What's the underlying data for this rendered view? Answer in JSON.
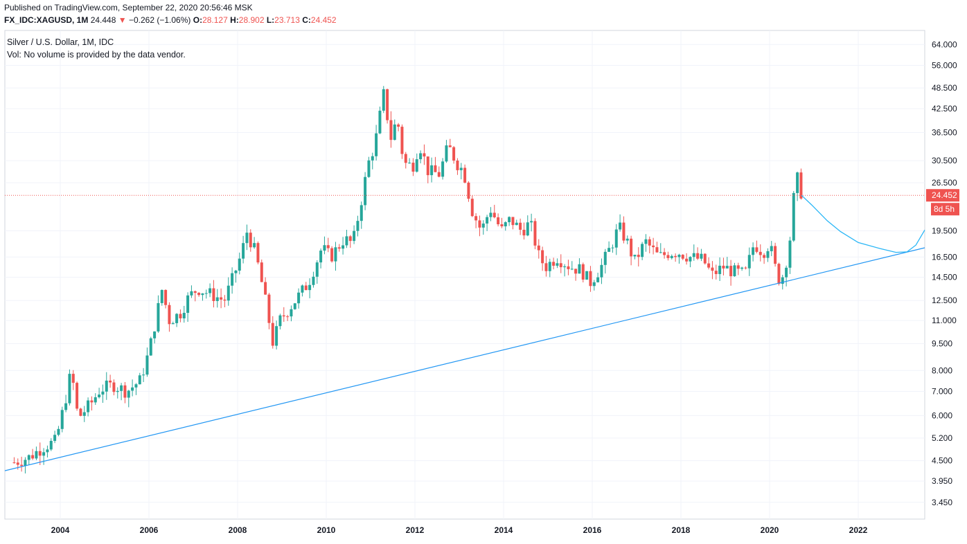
{
  "header": {
    "published": "Published on TradingView.com, September 22, 2020 20:56:46 MSK",
    "symbol": "FX_IDC:XAGUSD, 1M",
    "last": "24.448",
    "change": "−0.262 (−1.06%)",
    "o_label": "O:",
    "o_value": "28.127",
    "h_label": "H:",
    "h_value": "28.902",
    "l_label": "L:",
    "l_value": "23.713",
    "c_label": "C:",
    "c_value": "24.452"
  },
  "legend": {
    "title": "Silver / U.S. Dollar, 1M, IDC",
    "volume_note": "Vol: No volume is provided by the data vendor."
  },
  "price_tag": {
    "value": "24.452",
    "countdown": "8d 5h",
    "color": "#ef5350"
  },
  "colors": {
    "up": "#26a69a",
    "down": "#ef5350",
    "trendline": "#2196f3",
    "projection": "#29b6f6",
    "grid": "#f0f3fa"
  },
  "chart_data": {
    "type": "candlestick",
    "scale": "log",
    "ylim": [
      3.1,
      70
    ],
    "xlim": [
      2002.75,
      2023.5
    ],
    "y_ticks": [
      3.45,
      3.95,
      4.5,
      5.2,
      6.0,
      7.0,
      8.0,
      9.5,
      11.0,
      12.5,
      14.5,
      16.5,
      19.5,
      26.5,
      30.5,
      36.5,
      42.5,
      48.5,
      56.0,
      64.0
    ],
    "y_tick_labels": [
      "3.450",
      "3.950",
      "4.500",
      "5.200",
      "6.000",
      "7.000",
      "8.000",
      "9.500",
      "11.000",
      "12.500",
      "14.500",
      "16.500",
      "19.500",
      "26.500",
      "30.500",
      "36.500",
      "42.500",
      "48.500",
      "56.000",
      "64.000"
    ],
    "x_ticks": [
      2004,
      2006,
      2008,
      2010,
      2012,
      2014,
      2016,
      2018,
      2020,
      2022
    ],
    "x_tick_labels": [
      "2004",
      "2006",
      "2008",
      "2010",
      "2012",
      "2014",
      "2016",
      "2018",
      "2020",
      "2022"
    ],
    "last_price": 24.452,
    "close_path": [
      [
        2002.96,
        4.45
      ],
      [
        2003.3,
        4.6
      ],
      [
        2003.6,
        4.9
      ],
      [
        2003.9,
        5.1
      ],
      [
        2004.1,
        6.5
      ],
      [
        2004.25,
        8.0
      ],
      [
        2004.4,
        5.9
      ],
      [
        2004.7,
        6.5
      ],
      [
        2004.9,
        7.1
      ],
      [
        2005.2,
        7.3
      ],
      [
        2005.5,
        7.0
      ],
      [
        2005.8,
        7.5
      ],
      [
        2006.0,
        9.0
      ],
      [
        2006.15,
        11.0
      ],
      [
        2006.3,
        13.5
      ],
      [
        2006.45,
        11.0
      ],
      [
        2006.7,
        11.5
      ],
      [
        2006.9,
        12.8
      ],
      [
        2007.1,
        13.5
      ],
      [
        2007.4,
        13.0
      ],
      [
        2007.7,
        12.5
      ],
      [
        2007.9,
        14.5
      ],
      [
        2008.1,
        17.0
      ],
      [
        2008.2,
        19.5
      ],
      [
        2008.4,
        17.0
      ],
      [
        2008.6,
        13.0
      ],
      [
        2008.8,
        9.5
      ],
      [
        2008.95,
        11.0
      ],
      [
        2009.3,
        12.5
      ],
      [
        2009.6,
        14.0
      ],
      [
        2009.9,
        17.5
      ],
      [
        2010.1,
        16.5
      ],
      [
        2010.4,
        18.5
      ],
      [
        2010.6,
        18.0
      ],
      [
        2010.8,
        24.0
      ],
      [
        2010.95,
        30.0
      ],
      [
        2011.1,
        34.0
      ],
      [
        2011.3,
        47.0
      ],
      [
        2011.45,
        35.0
      ],
      [
        2011.6,
        40.0
      ],
      [
        2011.75,
        30.0
      ],
      [
        2011.95,
        29.5
      ],
      [
        2012.1,
        34.0
      ],
      [
        2012.3,
        28.5
      ],
      [
        2012.55,
        28.0
      ],
      [
        2012.75,
        33.5
      ],
      [
        2012.95,
        30.0
      ],
      [
        2013.1,
        28.5
      ],
      [
        2013.3,
        22.0
      ],
      [
        2013.5,
        19.5
      ],
      [
        2013.7,
        22.5
      ],
      [
        2013.95,
        19.5
      ],
      [
        2014.15,
        21.0
      ],
      [
        2014.4,
        19.5
      ],
      [
        2014.6,
        20.5
      ],
      [
        2014.8,
        16.5
      ],
      [
        2014.95,
        15.5
      ],
      [
        2015.2,
        16.5
      ],
      [
        2015.5,
        15.5
      ],
      [
        2015.75,
        15.2
      ],
      [
        2015.95,
        14.0
      ],
      [
        2016.2,
        15.5
      ],
      [
        2016.45,
        18.0
      ],
      [
        2016.6,
        20.0
      ],
      [
        2016.8,
        18.0
      ],
      [
        2016.95,
        16.0
      ],
      [
        2017.2,
        18.2
      ],
      [
        2017.5,
        16.5
      ],
      [
        2017.75,
        17.0
      ],
      [
        2017.95,
        17.0
      ],
      [
        2018.2,
        16.5
      ],
      [
        2018.5,
        16.2
      ],
      [
        2018.7,
        14.7
      ],
      [
        2018.95,
        15.5
      ],
      [
        2019.2,
        15.0
      ],
      [
        2019.45,
        14.8
      ],
      [
        2019.65,
        18.0
      ],
      [
        2019.85,
        17.0
      ],
      [
        2020.0,
        18.0
      ],
      [
        2020.15,
        15.0
      ],
      [
        2020.25,
        14.0
      ],
      [
        2020.35,
        15.5
      ],
      [
        2020.45,
        18.0
      ],
      [
        2020.55,
        24.5
      ],
      [
        2020.65,
        28.0
      ],
      [
        2020.72,
        24.45
      ]
    ],
    "trendline": {
      "from": [
        2002.75,
        4.22
      ],
      "to": [
        2023.5,
        17.5
      ]
    },
    "projection": [
      [
        2020.72,
        24.45
      ],
      [
        2020.95,
        23.0
      ],
      [
        2021.3,
        20.8
      ],
      [
        2021.6,
        19.4
      ],
      [
        2022.0,
        18.1
      ],
      [
        2022.5,
        17.4
      ],
      [
        2022.85,
        17.0
      ],
      [
        2023.1,
        17.05
      ],
      [
        2023.3,
        17.8
      ],
      [
        2023.5,
        19.6
      ]
    ]
  }
}
